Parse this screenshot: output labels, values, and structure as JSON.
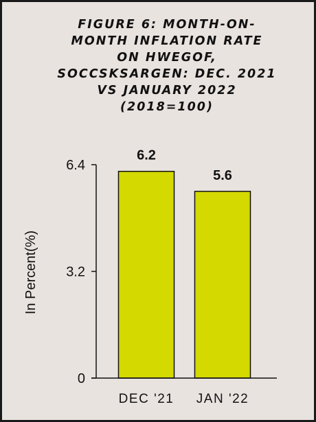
{
  "chart_data": {
    "type": "bar",
    "title_lines": [
      "FIGURE 6: MONTH-ON-",
      "MONTH INFLATION RATE",
      "ON HWEGOF,",
      "SOCCSKSARGEN: DEC. 2021",
      "VS JANUARY 2022",
      "(2018=100)"
    ],
    "categories": [
      "DEC '21",
      "JAN '22"
    ],
    "values": [
      6.2,
      5.6
    ],
    "data_labels": [
      "6.2",
      "5.6"
    ],
    "ylabel": "In Percent(%)",
    "ylim": [
      0,
      6.4
    ],
    "yticks": [
      0,
      3.2,
      6.4
    ],
    "ytick_labels": [
      "0",
      "3.2",
      "6.4"
    ],
    "grid": false,
    "legend": "none",
    "colors": {
      "bar_fill": "#d4d900",
      "bar_stroke": "#111111",
      "background": "#e9e3e0",
      "border": "#1a1a1a"
    }
  }
}
